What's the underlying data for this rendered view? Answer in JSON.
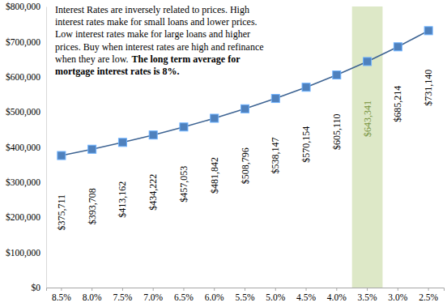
{
  "chart_data": {
    "type": "line",
    "categories": [
      "8.5%",
      "8.0%",
      "7.5%",
      "7.0%",
      "6.5%",
      "6.0%",
      "5.5%",
      "5.0%",
      "4.5%",
      "4.0%",
      "3.5%",
      "3.0%",
      "2.5%"
    ],
    "values": [
      375711,
      393708,
      413162,
      434222,
      457053,
      481842,
      508796,
      538147,
      570154,
      605110,
      643341,
      685214,
      731140
    ],
    "value_labels": [
      "$375,711",
      "$393,708",
      "$413,162",
      "$434,222",
      "$457,053",
      "$481,842",
      "$508,796",
      "$538,147",
      "$570,154",
      "$605,110",
      "$643,341",
      "$685,214",
      "$731,140"
    ],
    "data_labels": true,
    "color": "#4f81bd",
    "marker": "square",
    "grid": false,
    "ylim": [
      0,
      800000
    ],
    "yticks": [
      {
        "value": 0,
        "label": "$0"
      },
      {
        "value": 100000,
        "label": "$100,000"
      },
      {
        "value": 200000,
        "label": "$200,000"
      },
      {
        "value": 300000,
        "label": "$300,000"
      },
      {
        "value": 400000,
        "label": "$400,000"
      },
      {
        "value": 500000,
        "label": "$500,000"
      },
      {
        "value": 600000,
        "label": "$600,000"
      },
      {
        "value": 700000,
        "label": "$700,000"
      },
      {
        "value": 800000,
        "label": "$800,000"
      }
    ],
    "annotations": [
      {
        "type": "text",
        "lines": [
          "Interest Rates are inversely related to prices. High",
          "interest rates make for small loans and lower prices.",
          "Low interest rates make for large loans and higher",
          "prices. Buy when interest rates are high and refinance",
          "when they are low."
        ],
        "emphasis": [
          "The long term average for",
          "mortgage interest rates is 8%."
        ]
      },
      {
        "type": "band",
        "x": "3.5%",
        "color": "#d7e4bd"
      }
    ]
  }
}
